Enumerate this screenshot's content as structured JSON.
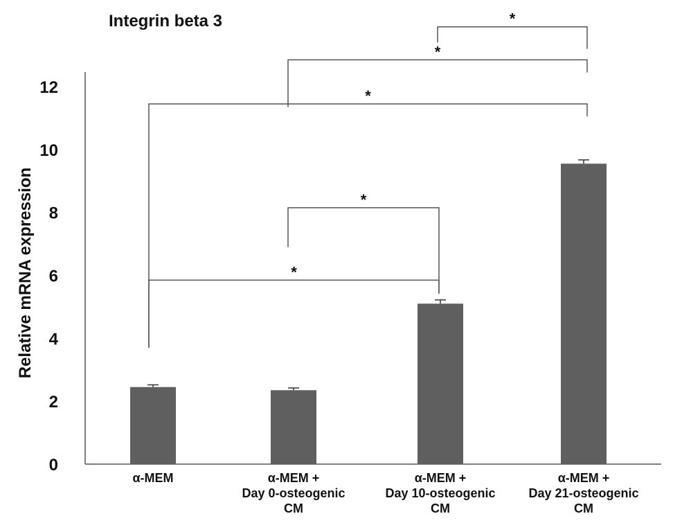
{
  "chart_data": {
    "type": "bar",
    "title": "Integrin beta 3",
    "xlabel": "",
    "ylabel": "Relative  mRNA expression",
    "ylim": [
      0,
      12
    ],
    "yticks": [
      0,
      2,
      4,
      6,
      8,
      10,
      12
    ],
    "grid": false,
    "categories": [
      [
        "α-MEM"
      ],
      [
        "α-MEM +",
        "Day 0-osteogenic",
        "CM"
      ],
      [
        "α-MEM +",
        "Day 10-osteogenic",
        "CM"
      ],
      [
        "α-MEM +",
        "Day 21-osteogenic",
        "CM"
      ]
    ],
    "values": [
      2.45,
      2.35,
      5.1,
      9.55
    ],
    "errors": [
      0.07,
      0.07,
      0.12,
      0.12
    ],
    "bar_color": "#5f5f5f",
    "significance": [
      {
        "from": 1,
        "to": 2,
        "label": "*",
        "level": 8.15
      },
      {
        "from": 0,
        "to": 2,
        "label": "*",
        "level": 5.85
      },
      {
        "from": 0,
        "to": 3,
        "label": "*",
        "level": 11.45
      },
      {
        "from": 1,
        "to": 3,
        "label": "*",
        "level": 12.85
      },
      {
        "from": 2,
        "to": 3,
        "label": "*",
        "level": 13.9
      }
    ]
  }
}
